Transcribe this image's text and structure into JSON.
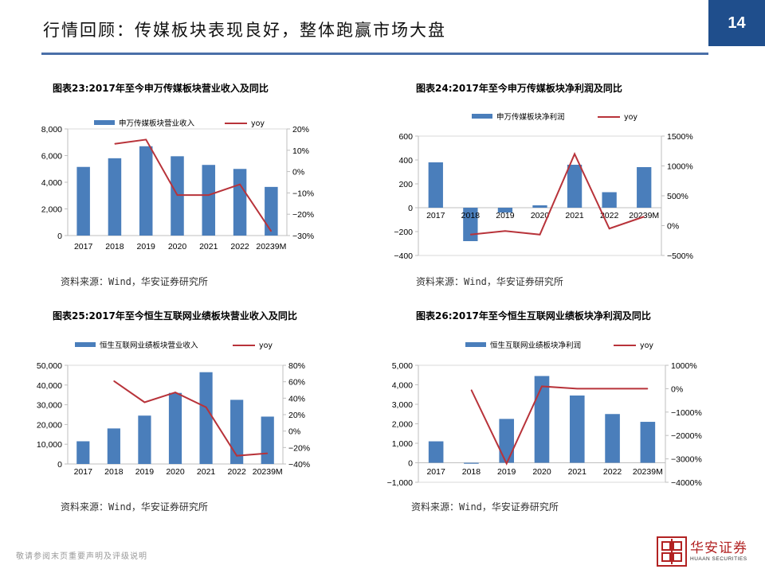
{
  "header": {
    "title": "行情回顾：传媒板块表现良好，整体跑赢市场大盘",
    "page_number": "14"
  },
  "footer": {
    "disclaimer": "敬请参阅末页重要声明及评级说明",
    "logo_text": "华安证券",
    "logo_sub": "HUAAN SECURITIES"
  },
  "charts": [
    {
      "title": "图表23:2017年至今申万传媒板块营业收入及同比",
      "source": "资料来源：Wind，华安证券研究所"
    },
    {
      "title": "图表24:2017年至今申万传媒板块净利润及同比",
      "source": "资料来源：Wind，华安证券研究所"
    },
    {
      "title": "图表25:2017年至今恒生互联网业绩板块营业收入及同比",
      "source": "资料来源：Wind，华安证券研究所"
    },
    {
      "title": "图表26:2017年至今恒生互联网业绩板块净利润及同比",
      "source": "资料来源：Wind，华安证券研究所"
    }
  ],
  "chart_data": [
    {
      "type": "bar",
      "categories": [
        "2017",
        "2018",
        "2019",
        "2020",
        "2021",
        "2022",
        "20239M"
      ],
      "series": [
        {
          "name": "申万传媒板块营业收入",
          "kind": "bar",
          "axis": "left",
          "values": [
            5150,
            5800,
            6700,
            5950,
            5300,
            5000,
            3650
          ]
        },
        {
          "name": "yoy",
          "kind": "line",
          "axis": "right",
          "values": [
            null,
            13,
            15,
            -11,
            -11,
            -6,
            -28
          ]
        }
      ],
      "ylim_left": [
        0,
        8000
      ],
      "yticks_left": [
        0,
        2000,
        4000,
        6000,
        8000
      ],
      "ytick_labels_left": [
        "0",
        "2,000",
        "4,000",
        "6,000",
        "8,000"
      ],
      "ylim_right": [
        -30,
        20
      ],
      "yticks_right": [
        -30,
        -20,
        -10,
        0,
        10,
        20
      ],
      "ytick_labels_right": [
        "−30%",
        "−20%",
        "−10%",
        "0%",
        "10%",
        "20%"
      ],
      "legend_position": "top",
      "colors": {
        "bar": "#4a7ebb",
        "line": "#b8333a"
      }
    },
    {
      "type": "bar",
      "categories": [
        "2017",
        "2018",
        "2019",
        "2020",
        "2021",
        "2022",
        "20239M"
      ],
      "series": [
        {
          "name": "申万传媒板块净利润",
          "kind": "bar",
          "axis": "left",
          "values": [
            380,
            -280,
            -40,
            20,
            360,
            130,
            340
          ]
        },
        {
          "name": "yoy",
          "kind": "line",
          "axis": "right",
          "values": [
            null,
            -150,
            -90,
            -150,
            1200,
            -50,
            150
          ]
        }
      ],
      "ylim_left": [
        -400,
        600
      ],
      "yticks_left": [
        -400,
        -200,
        0,
        200,
        400,
        600
      ],
      "ytick_labels_left": [
        "−400",
        "−200",
        "0",
        "200",
        "400",
        "600"
      ],
      "ylim_right": [
        -500,
        1500
      ],
      "yticks_right": [
        -500,
        0,
        500,
        1000,
        1500
      ],
      "ytick_labels_right": [
        "−500%",
        "0%",
        "500%",
        "1000%",
        "1500%"
      ],
      "legend_position": "top",
      "colors": {
        "bar": "#4a7ebb",
        "line": "#b8333a"
      }
    },
    {
      "type": "bar",
      "categories": [
        "2017",
        "2018",
        "2019",
        "2020",
        "2021",
        "2022",
        "20239M"
      ],
      "series": [
        {
          "name": "恒生互联网业绩板块营业收入",
          "kind": "bar",
          "axis": "left",
          "values": [
            11500,
            18000,
            24500,
            36000,
            46500,
            32500,
            24000
          ]
        },
        {
          "name": "yoy",
          "kind": "line",
          "axis": "right",
          "values": [
            null,
            61,
            35,
            47,
            29,
            -30,
            -27
          ]
        }
      ],
      "ylim_left": [
        0,
        50000
      ],
      "yticks_left": [
        0,
        10000,
        20000,
        30000,
        40000,
        50000
      ],
      "ytick_labels_left": [
        "0",
        "10,000",
        "20,000",
        "30,000",
        "40,000",
        "50,000"
      ],
      "ylim_right": [
        -40,
        80
      ],
      "yticks_right": [
        -40,
        -20,
        0,
        20,
        40,
        60,
        80
      ],
      "ytick_labels_right": [
        "−40%",
        "−20%",
        "0%",
        "20%",
        "40%",
        "60%",
        "80%"
      ],
      "legend_position": "top",
      "colors": {
        "bar": "#4a7ebb",
        "line": "#b8333a"
      }
    },
    {
      "type": "bar",
      "categories": [
        "2017",
        "2018",
        "2019",
        "2020",
        "2021",
        "2022",
        "20239M"
      ],
      "series": [
        {
          "name": "恒生互联网业绩板块净利润",
          "kind": "bar",
          "axis": "left",
          "values": [
            1100,
            -50,
            2250,
            4450,
            3450,
            2500,
            2100
          ]
        },
        {
          "name": "yoy",
          "kind": "line",
          "axis": "right",
          "values": [
            null,
            -50,
            -3200,
            100,
            0,
            0,
            0
          ]
        }
      ],
      "ylim_left": [
        -1000,
        5000
      ],
      "yticks_left": [
        -1000,
        0,
        1000,
        2000,
        3000,
        4000,
        5000
      ],
      "ytick_labels_left": [
        "−1,000",
        "0",
        "1,000",
        "2,000",
        "3,000",
        "4,000",
        "5,000"
      ],
      "ylim_right": [
        -4000,
        1000
      ],
      "yticks_right": [
        -4000,
        -3000,
        -2000,
        -1000,
        0,
        1000
      ],
      "ytick_labels_right": [
        "−4000%",
        "−3000%",
        "−2000%",
        "−1000%",
        "0%",
        "1000%"
      ],
      "legend_position": "top",
      "colors": {
        "bar": "#4a7ebb",
        "line": "#b8333a"
      }
    }
  ]
}
